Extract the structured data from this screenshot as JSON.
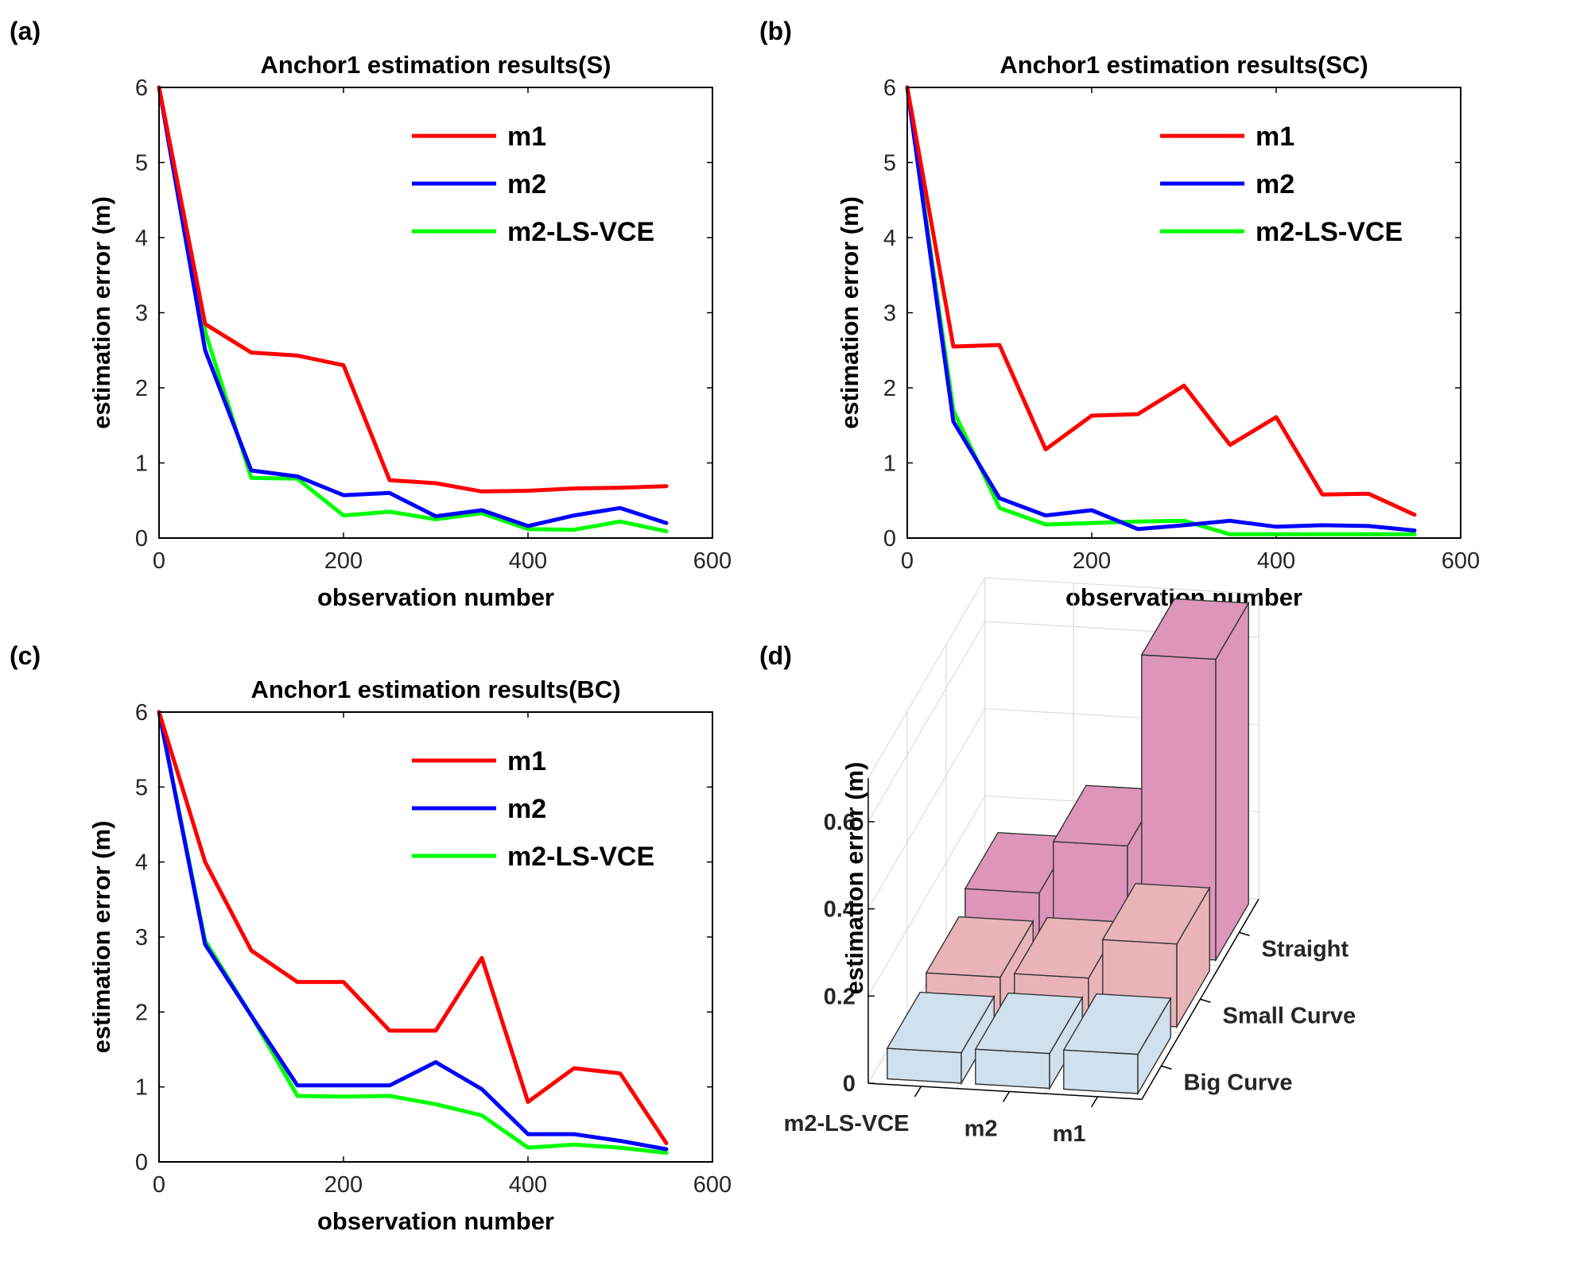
{
  "panel_labels": [
    "(a)",
    "(b)",
    "(c)",
    "(d)"
  ],
  "colors": {
    "m1": "#ff0000",
    "m2": "#0000ff",
    "m2_ls_vce": "#00ff00"
  },
  "chart_data": [
    {
      "type": "line",
      "panel": "(a)",
      "title": "Anchor1 estimation results(S)",
      "xlabel": "observation number",
      "ylabel": "estimation error (m)",
      "xlim": [
        0,
        600
      ],
      "ylim": [
        0,
        6
      ],
      "xticks": [
        0,
        200,
        400,
        600
      ],
      "yticks": [
        0,
        1,
        2,
        3,
        4,
        5,
        6
      ],
      "grid": false,
      "legend": "top-right",
      "x": [
        0,
        50,
        100,
        150,
        200,
        250,
        300,
        350,
        400,
        450,
        500,
        550
      ],
      "series": [
        {
          "name": "m1",
          "color": "#ff0000",
          "values": [
            6,
            2.85,
            2.47,
            2.43,
            2.3,
            0.77,
            0.73,
            0.62,
            0.63,
            0.66,
            0.67,
            0.69
          ]
        },
        {
          "name": "m2",
          "color": "#0000ff",
          "values": [
            6,
            2.5,
            0.9,
            0.82,
            0.57,
            0.6,
            0.29,
            0.37,
            0.16,
            0.3,
            0.4,
            0.2
          ]
        },
        {
          "name": "m2-LS-VCE",
          "color": "#00ff00",
          "values": [
            6,
            2.75,
            0.8,
            0.79,
            0.3,
            0.35,
            0.25,
            0.33,
            0.12,
            0.11,
            0.22,
            0.09
          ]
        }
      ]
    },
    {
      "type": "line",
      "panel": "(b)",
      "title": "Anchor1 estimation results(SC)",
      "xlabel": "observation number",
      "ylabel": "estimation error (m)",
      "xlim": [
        0,
        600
      ],
      "ylim": [
        0,
        6
      ],
      "xticks": [
        0,
        200,
        400,
        600
      ],
      "yticks": [
        0,
        1,
        2,
        3,
        4,
        5,
        6
      ],
      "grid": false,
      "legend": "top-right",
      "x": [
        0,
        50,
        100,
        150,
        200,
        250,
        300,
        350,
        400,
        450,
        500,
        550
      ],
      "series": [
        {
          "name": "m1",
          "color": "#ff0000",
          "values": [
            6,
            2.55,
            2.57,
            1.18,
            1.63,
            1.65,
            2.03,
            1.24,
            1.61,
            0.58,
            0.59,
            0.31
          ]
        },
        {
          "name": "m2",
          "color": "#0000ff",
          "values": [
            6,
            1.55,
            0.53,
            0.3,
            0.37,
            0.12,
            0.17,
            0.23,
            0.15,
            0.17,
            0.16,
            0.1
          ]
        },
        {
          "name": "m2-LS-VCE",
          "color": "#00ff00",
          "values": [
            6,
            1.7,
            0.4,
            0.18,
            0.2,
            0.22,
            0.23,
            0.05,
            0.05,
            0.05,
            0.05,
            0.05
          ]
        }
      ]
    },
    {
      "type": "line",
      "panel": "(c)",
      "title": "Anchor1 estimation results(BC)",
      "xlabel": "observation number",
      "ylabel": "estimation error (m)",
      "xlim": [
        0,
        600
      ],
      "ylim": [
        0,
        6
      ],
      "xticks": [
        0,
        200,
        400,
        600
      ],
      "yticks": [
        0,
        1,
        2,
        3,
        4,
        5,
        6
      ],
      "grid": false,
      "legend": "top-right",
      "x": [
        0,
        50,
        100,
        150,
        200,
        250,
        300,
        350,
        400,
        450,
        500,
        550
      ],
      "series": [
        {
          "name": "m1",
          "color": "#ff0000",
          "values": [
            6,
            4,
            2.82,
            2.4,
            2.4,
            1.75,
            1.75,
            2.72,
            0.8,
            1.25,
            1.18,
            0.25
          ]
        },
        {
          "name": "m2",
          "color": "#0000ff",
          "values": [
            6,
            2.9,
            1.95,
            1.02,
            1.02,
            1.02,
            1.33,
            0.97,
            0.37,
            0.37,
            0.28,
            0.17
          ]
        },
        {
          "name": "m2-LS-VCE",
          "color": "#00ff00",
          "values": [
            6,
            2.95,
            1.95,
            0.88,
            0.87,
            0.88,
            0.77,
            0.62,
            0.19,
            0.23,
            0.19,
            0.12
          ]
        }
      ]
    },
    {
      "type": "bar3d",
      "panel": "(d)",
      "title": "",
      "zlabel": "estimation error (m)",
      "zlim": [
        0,
        0.7
      ],
      "zticks": [
        0,
        0.2,
        0.4,
        0.6
      ],
      "methods": [
        "m2-LS-VCE",
        "m2",
        "m1"
      ],
      "scenarios": [
        "Big Curve",
        "Small Curve",
        "Straight"
      ],
      "scenario_colors": [
        "#cfe0ee",
        "#e8b4b8",
        "#dd95ba"
      ],
      "values": [
        [
          0.07,
          0.09,
          0.13
        ],
        [
          0.08,
          0.1,
          0.25
        ],
        [
          0.09,
          0.19,
          0.69
        ]
      ]
    }
  ]
}
